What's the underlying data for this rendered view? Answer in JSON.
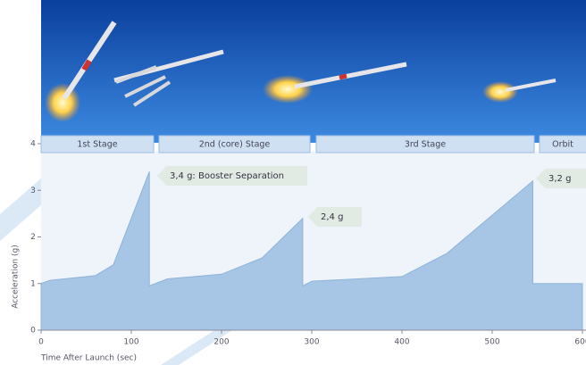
{
  "chart_data": {
    "type": "area",
    "stages": [
      "1st Stage",
      "2nd (core) Stage",
      "3rd Stage",
      "Orbit"
    ],
    "annotations": [
      "3,4 g: Booster Separation",
      "2,4 g",
      "3,2 g"
    ],
    "x_label": "Time After Launch (sec)",
    "y_label": "Acceleration (g)",
    "x": [
      0,
      10,
      60,
      80,
      120,
      120,
      140,
      200,
      245,
      290,
      290,
      300,
      400,
      450,
      545,
      545,
      600
    ],
    "values": [
      1.0,
      1.07,
      1.17,
      1.4,
      3.4,
      0.95,
      1.1,
      1.2,
      1.55,
      2.4,
      0.95,
      1.05,
      1.15,
      1.65,
      3.2,
      1.0,
      1.0
    ],
    "color": "#a7c5e4",
    "xlim": [
      0,
      600
    ],
    "ylim": [
      0,
      4
    ],
    "xticks": [
      0,
      100,
      200,
      300,
      400,
      500,
      600
    ],
    "yticks": [
      0,
      1,
      2,
      3,
      4
    ]
  }
}
